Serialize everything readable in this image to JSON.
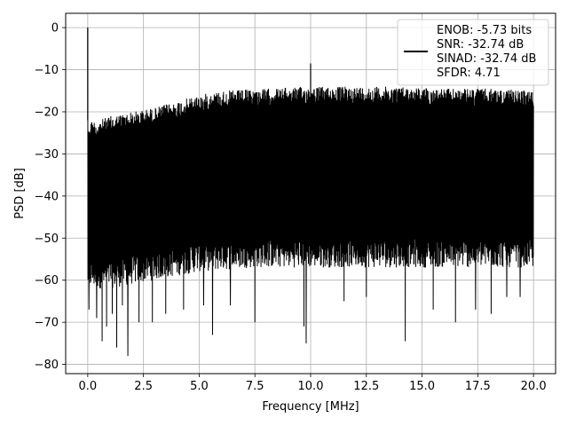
{
  "chart_data": {
    "type": "line",
    "title": "",
    "xlabel": "Frequency [MHz]",
    "ylabel": "PSD [dB]",
    "xlim": [
      -0.99,
      20.99
    ],
    "ylim": [
      -82.2,
      3.4
    ],
    "xticks": [
      0.0,
      2.5,
      5.0,
      7.5,
      10.0,
      12.5,
      15.0,
      17.5,
      20.0
    ],
    "xtick_labels": [
      "0.0",
      "2.5",
      "5.0",
      "7.5",
      "10.0",
      "12.5",
      "15.0",
      "17.5",
      "20.0"
    ],
    "yticks": [
      0,
      -10,
      -20,
      -30,
      -40,
      -50,
      -60,
      -70,
      -80
    ],
    "ytick_labels": [
      "0",
      "−10",
      "−20",
      "−30",
      "−40",
      "−50",
      "−60",
      "−70",
      "−80"
    ],
    "grid": true,
    "line_color": "#000000",
    "legend": {
      "placement": "top-right",
      "entries": [
        "ENOB: -5.73 bits",
        "SNR: -32.74 dB",
        "SINAD: -32.74 dB",
        "SFDR: 4.71"
      ]
    },
    "series": [
      {
        "x_range": [
          0.0,
          20.0
        ],
        "upper_envelope": [
          [
            0.0,
            -22
          ],
          [
            0.5,
            -22
          ],
          [
            1.0,
            -21
          ],
          [
            2.0,
            -20
          ],
          [
            3.0,
            -19
          ],
          [
            4.0,
            -17.5
          ],
          [
            5.0,
            -16
          ],
          [
            6.0,
            -15
          ],
          [
            8.0,
            -14.5
          ],
          [
            10.0,
            -14
          ],
          [
            12.0,
            -14
          ],
          [
            14.0,
            -14
          ],
          [
            16.0,
            -14.5
          ],
          [
            18.0,
            -14.5
          ],
          [
            20.0,
            -15
          ]
        ],
        "lower_envelope": [
          [
            0.0,
            -62
          ],
          [
            1.0,
            -62
          ],
          [
            2.0,
            -61
          ],
          [
            3.0,
            -60
          ],
          [
            5.0,
            -58
          ],
          [
            7.5,
            -57
          ],
          [
            10.0,
            -57
          ],
          [
            12.5,
            -57
          ],
          [
            15.0,
            -57
          ],
          [
            17.5,
            -57
          ],
          [
            20.0,
            -57
          ]
        ],
        "peaks": [
          {
            "x": 0.0,
            "y": 0.0
          },
          {
            "x": 10.0,
            "y": -8.5
          }
        ],
        "notches": [
          {
            "x": 0.05,
            "y": -67
          },
          {
            "x": 0.4,
            "y": -69
          },
          {
            "x": 0.65,
            "y": -74.5
          },
          {
            "x": 0.85,
            "y": -71
          },
          {
            "x": 1.1,
            "y": -68
          },
          {
            "x": 1.3,
            "y": -76
          },
          {
            "x": 1.55,
            "y": -66
          },
          {
            "x": 1.8,
            "y": -78
          },
          {
            "x": 2.3,
            "y": -70
          },
          {
            "x": 2.9,
            "y": -70
          },
          {
            "x": 3.5,
            "y": -68
          },
          {
            "x": 4.3,
            "y": -67
          },
          {
            "x": 5.2,
            "y": -66
          },
          {
            "x": 5.6,
            "y": -73
          },
          {
            "x": 6.4,
            "y": -66
          },
          {
            "x": 7.5,
            "y": -70
          },
          {
            "x": 9.7,
            "y": -71
          },
          {
            "x": 9.8,
            "y": -75
          },
          {
            "x": 10.0,
            "y": -69
          },
          {
            "x": 11.5,
            "y": -65
          },
          {
            "x": 12.5,
            "y": -64
          },
          {
            "x": 14.25,
            "y": -74.5
          },
          {
            "x": 15.5,
            "y": -67
          },
          {
            "x": 16.5,
            "y": -70
          },
          {
            "x": 17.4,
            "y": -67
          },
          {
            "x": 18.1,
            "y": -68
          },
          {
            "x": 18.8,
            "y": -64
          },
          {
            "x": 19.4,
            "y": -64
          }
        ]
      }
    ]
  }
}
